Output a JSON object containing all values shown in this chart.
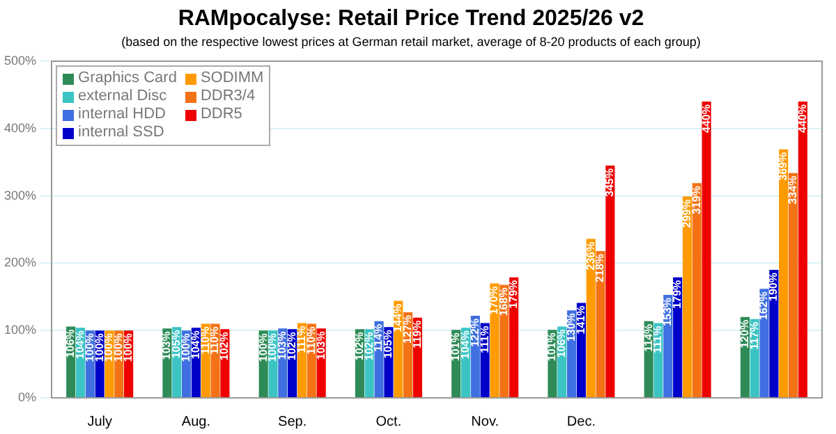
{
  "chart_data": {
    "type": "bar",
    "title": "RAMpocalyse: Retail Price Trend 2025/26 v2",
    "subtitle": "(based on the respective lowest prices at German retail market, average of 8-20 products of each group)",
    "categories": [
      "July",
      "Aug.",
      "Sep.",
      "Oct.",
      "Nov.",
      "Dec.",
      null,
      null
    ],
    "series": [
      {
        "name": "Graphics Card",
        "color": "#2e8b57",
        "values": [
          106,
          103,
          100,
          102,
          101,
          101,
          114,
          120
        ],
        "value_labels": [
          "106%",
          "103%",
          "100%",
          "102%",
          "101%",
          "101%",
          "114%",
          "120%"
        ]
      },
      {
        "name": "external Disc",
        "color": "#3cc4c4",
        "values": [
          104,
          105,
          100,
          102,
          104,
          106,
          111,
          117
        ],
        "value_labels": [
          "104%",
          "105%",
          "100%",
          "102%",
          "104%",
          "106%",
          "111%",
          "117%"
        ]
      },
      {
        "name": "internal HDD",
        "color": "#3f6fe0",
        "values": [
          100,
          100,
          103,
          114,
          122,
          130,
          153,
          162
        ],
        "value_labels": [
          "100%",
          "100%",
          "103%",
          "114%",
          "122%",
          "130%",
          "153%",
          "162%"
        ]
      },
      {
        "name": "internal SSD",
        "color": "#0000c8",
        "values": [
          100,
          104,
          102,
          105,
          111,
          141,
          179,
          190
        ],
        "value_labels": [
          "100%",
          "104%",
          "102%",
          "105%",
          "111%",
          "141%",
          "179%",
          "190%"
        ]
      },
      {
        "name": "SODIMM",
        "color": "#ff9a00",
        "values": [
          100,
          110,
          111,
          144,
          170,
          236,
          299,
          369
        ],
        "value_labels": [
          "100%",
          "110%",
          "111%",
          "144%",
          "170%",
          "236%",
          "299%",
          "369%"
        ]
      },
      {
        "name": "DDR3/4",
        "color": "#f47216",
        "values": [
          100,
          110,
          110,
          127,
          168,
          218,
          319,
          334
        ],
        "value_labels": [
          "100%",
          "110%",
          "110%",
          "127%",
          "168%",
          "218%",
          "319%",
          "334%"
        ]
      },
      {
        "name": "DDR5",
        "color": "#ee0000",
        "values": [
          100,
          102,
          103,
          119,
          179,
          345,
          440,
          440
        ],
        "value_labels": [
          "100%",
          "102%",
          "103%",
          "119%",
          "179%",
          "345%",
          "440%",
          "440%"
        ]
      }
    ],
    "ylim": [
      0,
      500
    ],
    "yticks": [
      {
        "value": 0,
        "label": "0%"
      },
      {
        "value": 100,
        "label": "100%"
      },
      {
        "value": 200,
        "label": "200%"
      },
      {
        "value": 300,
        "label": "300%"
      },
      {
        "value": 400,
        "label": "400%"
      },
      {
        "value": 500,
        "label": "500%"
      }
    ],
    "grid": "y",
    "legend": "top left"
  }
}
